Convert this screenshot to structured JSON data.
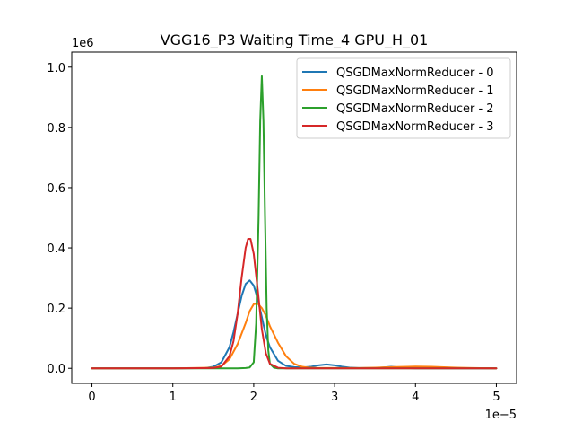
{
  "chart_data": {
    "type": "line",
    "title": "VGG16_P3 Waiting Time_4 GPU_H_01",
    "xlabel": "",
    "ylabel": "",
    "x_offset_label": "1e−5",
    "y_offset_label": "1e6",
    "xlim": [
      -0.25,
      5.25
    ],
    "ylim": [
      -0.05,
      1.05
    ],
    "x_ticks": [
      0,
      1,
      2,
      3,
      4,
      5
    ],
    "x_tick_labels": [
      "0",
      "1",
      "2",
      "3",
      "4",
      "5"
    ],
    "y_ticks": [
      0.0,
      0.2,
      0.4,
      0.6,
      0.8,
      1.0
    ],
    "y_tick_labels": [
      "0.0",
      "0.2",
      "0.4",
      "0.6",
      "0.8",
      "1.0"
    ],
    "grid": false,
    "legend_position": "top-right",
    "series": [
      {
        "name": "QSGDMaxNormReducer - 0",
        "color": "#1f77b4",
        "x": [
          0,
          1.0,
          1.4,
          1.5,
          1.6,
          1.7,
          1.75,
          1.8,
          1.85,
          1.9,
          1.95,
          2.0,
          2.05,
          2.1,
          2.15,
          2.2,
          2.3,
          2.4,
          2.5,
          2.6,
          2.7,
          2.8,
          2.9,
          3.0,
          3.1,
          3.2,
          3.3,
          3.5,
          3.6,
          3.7,
          3.8,
          3.9,
          4.0,
          4.5,
          5.0
        ],
        "y": [
          0,
          0,
          0.001,
          0.005,
          0.02,
          0.07,
          0.12,
          0.18,
          0.24,
          0.28,
          0.292,
          0.275,
          0.23,
          0.17,
          0.11,
          0.07,
          0.025,
          0.008,
          0.004,
          0.003,
          0.005,
          0.01,
          0.013,
          0.01,
          0.005,
          0.002,
          0.001,
          0.001,
          0.003,
          0.005,
          0.003,
          0.001,
          0,
          0,
          0
        ]
      },
      {
        "name": "QSGDMaxNormReducer - 1",
        "color": "#ff7f0e",
        "x": [
          0,
          1.0,
          1.5,
          1.6,
          1.7,
          1.8,
          1.9,
          1.95,
          2.0,
          2.05,
          2.1,
          2.15,
          2.2,
          2.3,
          2.4,
          2.5,
          2.6,
          2.7,
          2.8,
          3.0,
          3.3,
          3.5,
          3.7,
          3.9,
          4.0,
          4.2,
          4.5,
          4.7,
          5.0
        ],
        "y": [
          0,
          0,
          0.002,
          0.008,
          0.03,
          0.08,
          0.15,
          0.19,
          0.213,
          0.215,
          0.2,
          0.175,
          0.14,
          0.085,
          0.04,
          0.015,
          0.005,
          0.002,
          0.001,
          0.001,
          0.001,
          0.002,
          0.004,
          0.005,
          0.006,
          0.005,
          0.002,
          0.001,
          0
        ]
      },
      {
        "name": "QSGDMaxNormReducer - 2",
        "color": "#2ca02c",
        "x": [
          0,
          1.0,
          1.8,
          1.9,
          1.95,
          2.0,
          2.03,
          2.06,
          2.08,
          2.1,
          2.12,
          2.14,
          2.16,
          2.18,
          2.2,
          2.25,
          2.3,
          2.5,
          3.0,
          4.0,
          5.0
        ],
        "y": [
          0,
          0,
          0,
          0.001,
          0.003,
          0.02,
          0.15,
          0.5,
          0.82,
          0.97,
          0.82,
          0.5,
          0.2,
          0.06,
          0.015,
          0.002,
          0,
          0,
          0,
          0,
          0
        ]
      },
      {
        "name": "QSGDMaxNormReducer - 3",
        "color": "#d62728",
        "x": [
          0,
          1.0,
          1.5,
          1.6,
          1.7,
          1.75,
          1.8,
          1.85,
          1.9,
          1.93,
          1.96,
          2.0,
          2.05,
          2.1,
          2.15,
          2.2,
          2.3,
          2.4,
          2.5,
          3.0,
          4.0,
          5.0
        ],
        "y": [
          0,
          0,
          0.001,
          0.006,
          0.04,
          0.09,
          0.18,
          0.3,
          0.4,
          0.43,
          0.43,
          0.38,
          0.26,
          0.13,
          0.05,
          0.015,
          0.002,
          0,
          0,
          0,
          0,
          0
        ]
      }
    ]
  }
}
